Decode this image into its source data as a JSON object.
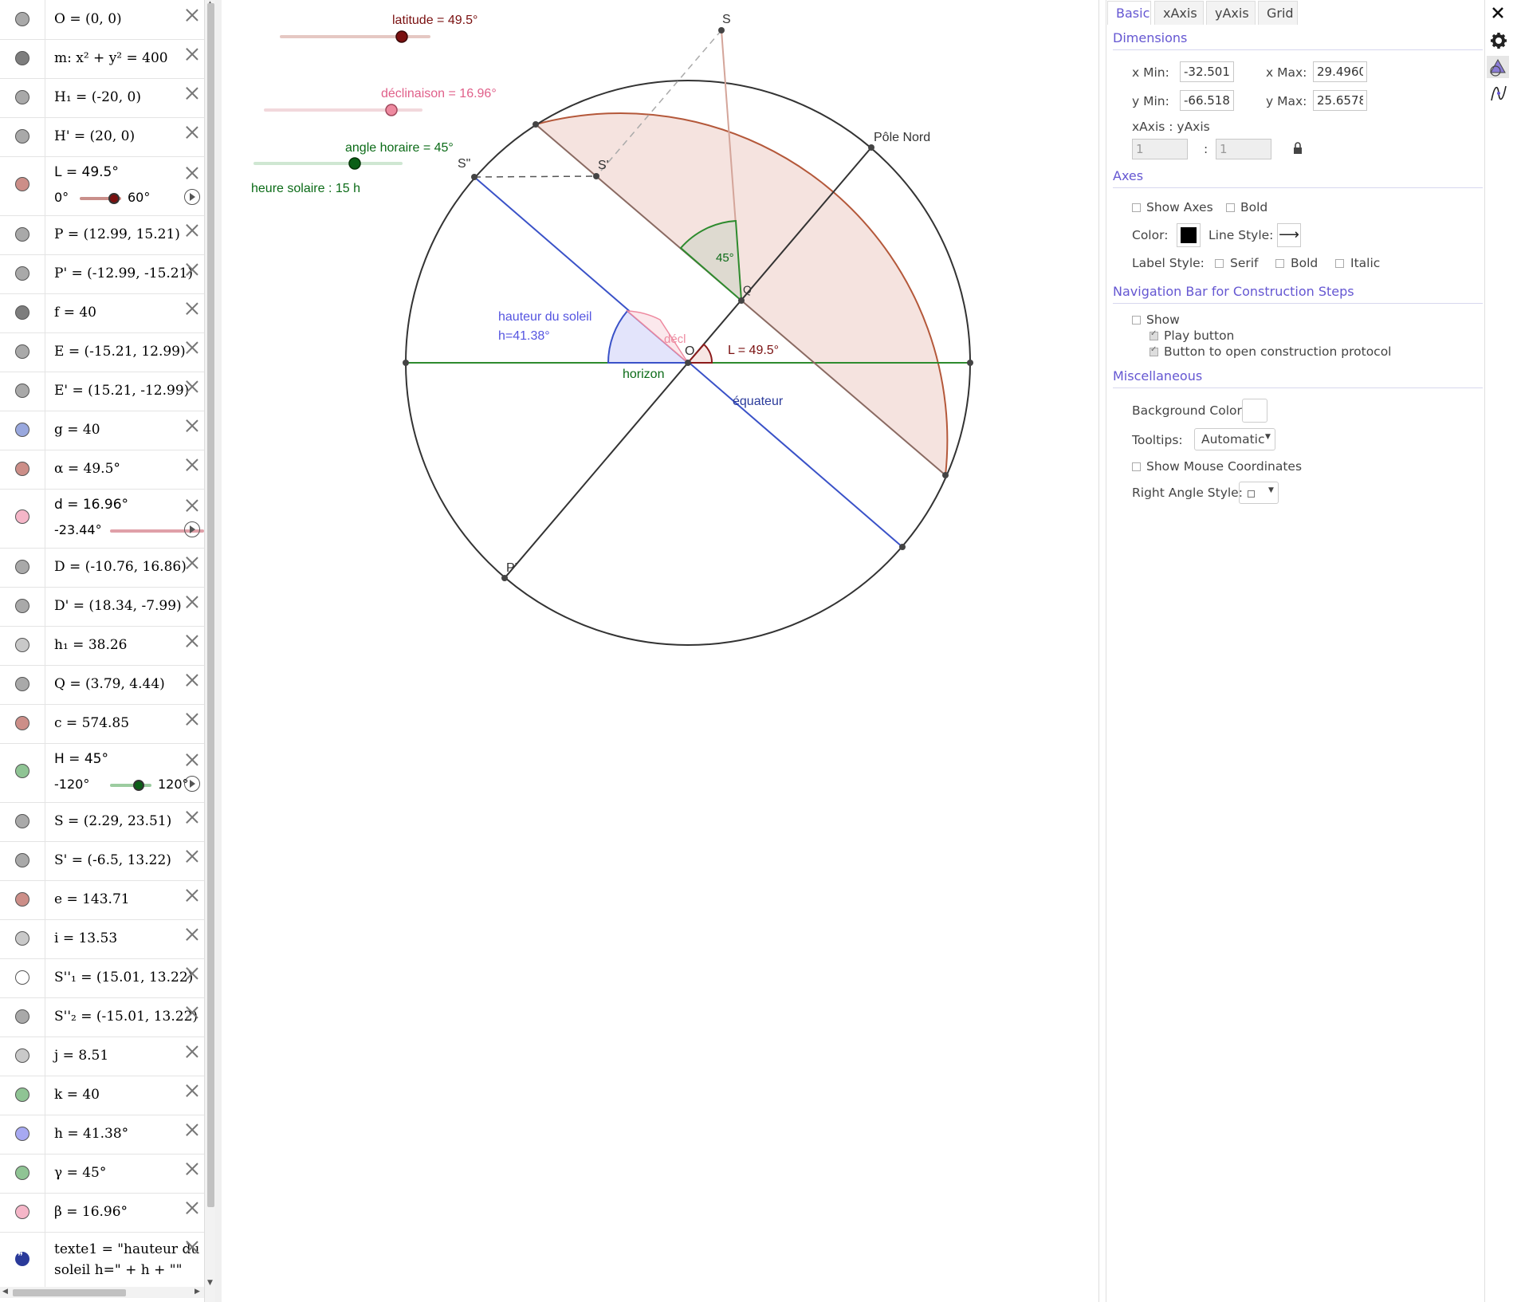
{
  "algebra": {
    "items": [
      {
        "text": "O = (0, 0)",
        "marble": "#a9a9a9"
      },
      {
        "text": "m: x² + y² = 400",
        "marble": "#7d7d7d"
      },
      {
        "text": "H₁ = (-20, 0)",
        "marble": "#a9a9a9"
      },
      {
        "text": "H' = (20, 0)",
        "marble": "#a9a9a9"
      },
      {
        "text": "L = 49.5°",
        "marble": "#cc8e88",
        "slider": {
          "min": "0°",
          "max": "60°",
          "color": "#c98f8a",
          "knob": "#7a1010",
          "fraction": 0.82
        }
      },
      {
        "text": "P = (12.99, 15.21)",
        "marble": "#a9a9a9"
      },
      {
        "text": "P' = (-12.99, -15.21)",
        "marble": "#a9a9a9"
      },
      {
        "text": "f = 40",
        "marble": "#7d7d7d"
      },
      {
        "text": "E = (-15.21, 12.99)",
        "marble": "#a9a9a9"
      },
      {
        "text": "E' = (15.21, -12.99)",
        "marble": "#a9a9a9"
      },
      {
        "text": "g = 40",
        "marble": "#99a8de"
      },
      {
        "text": "α = 49.5°",
        "marble": "#cc8e88"
      },
      {
        "text": "d = 16.96°",
        "marble": "#f5b6c8",
        "slider": {
          "min": "-23.44°",
          "max": "",
          "color": "#e0a0a8",
          "knob": "#ee8aa0",
          "fraction": 0.86
        }
      },
      {
        "text": "D = (-10.76, 16.86)",
        "marble": "#a9a9a9"
      },
      {
        "text": "D' = (18.34, -7.99)",
        "marble": "#a9a9a9"
      },
      {
        "text": "h₁ = 38.26",
        "marble": "#c9c9c9"
      },
      {
        "text": "Q = (3.79, 4.44)",
        "marble": "#a9a9a9"
      },
      {
        "text": "c = 574.85",
        "marble": "#cc8e88"
      },
      {
        "text": "H = 45°",
        "marble": "#8fc494",
        "slider": {
          "min": "-120°",
          "max": "120°",
          "color": "#9ccca0",
          "knob": "#0b5f17",
          "fraction": 0.69
        }
      },
      {
        "text": "S = (2.29, 23.51)",
        "marble": "#a9a9a9"
      },
      {
        "text": "S' = (-6.5, 13.22)",
        "marble": "#a9a9a9"
      },
      {
        "text": "e = 143.71",
        "marble": "#cc8e88"
      },
      {
        "text": "i = 13.53",
        "marble": "#c9c9c9"
      },
      {
        "text": "S''₁ = (15.01, 13.22)",
        "marble": "#ffffff"
      },
      {
        "text": "S''₂ = (-15.01, 13.22)",
        "marble": "#a9a9a9"
      },
      {
        "text": "j = 8.51",
        "marble": "#c9c9c9"
      },
      {
        "text": "k = 40",
        "marble": "#8fc494"
      },
      {
        "text": "h = 41.38°",
        "marble": "#a7a9f2"
      },
      {
        "text": "γ = 45°",
        "marble": "#8fc494"
      },
      {
        "text": "β = 16.96°",
        "marble": "#f5b6c8"
      },
      {
        "text": "texte1 = \"hauteur du",
        "text2": "soleil h=\" + h + \"\"",
        "quote": true
      }
    ]
  },
  "graphics": {
    "latitude_label": "latitude = 49.5°",
    "declinaison_label": "déclinaison = 16.96°",
    "angle_horaire_label": "angle horaire = 45°",
    "heure_solaire": "heure solaire : 15 h",
    "S": "S",
    "S_prime": "S'",
    "S_double": "S\"",
    "pole_nord": "Pôle Nord",
    "Q": "Q",
    "O": "O",
    "P_prime": "P'",
    "angle_45": "45°",
    "hauteur1": "hauteur du soleil",
    "hauteur2": "h=41.38°",
    "decl": "décl",
    "L_label": "L = 49.5°",
    "horizon": "horizon",
    "equateur": "équateur"
  },
  "props": {
    "tabs": [
      "Basic",
      "xAxis",
      "yAxis",
      "Grid"
    ],
    "dimensions": "Dimensions",
    "xmin_label": "x Min:",
    "xmin": "-32.5010",
    "xmax_label": "x Max:",
    "xmax": "29.49604",
    "ymin_label": "y Min:",
    "ymin": "-66.5182",
    "ymax_label": "y Max:",
    "ymax": "25.65786",
    "ratio_label": "xAxis : yAxis",
    "ratio_x": "1",
    "ratio_sep": ":",
    "ratio_y": "1",
    "axes": "Axes",
    "show_axes": "Show Axes",
    "bold": "Bold",
    "color_label": "Color:",
    "line_style_label": "Line Style:",
    "label_style": "Label Style:",
    "serif": "Serif",
    "bold2": "Bold",
    "italic": "Italic",
    "nav_title": "Navigation Bar for Construction Steps",
    "show": "Show",
    "play_button": "Play button",
    "open_protocol": "Button to open construction protocol",
    "misc": "Miscellaneous",
    "bg_color": "Background Color:",
    "tooltips_label": "Tooltips:",
    "tooltips_value": "Automatic",
    "mouse_coords": "Show Mouse Coordinates",
    "right_angle": "Right Angle Style:"
  }
}
